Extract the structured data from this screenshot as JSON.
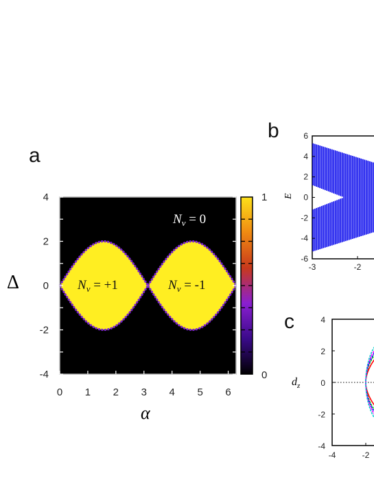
{
  "panels": {
    "a": "a",
    "b": "b",
    "c": "c"
  },
  "chart_data": [
    {
      "panel": "a",
      "type": "heatmap",
      "xlabel": "α",
      "ylabel": "Δ",
      "xlim": [
        0,
        6.28
      ],
      "ylim": [
        -4,
        4
      ],
      "x_ticks": [
        "0",
        "1",
        "2",
        "3",
        "4",
        "5",
        "6"
      ],
      "y_ticks": [
        "4",
        "2",
        "0",
        "-2",
        "-4"
      ],
      "colorbar": {
        "min_label": "0",
        "max_label": "1",
        "colors": [
          "#000000",
          "#3a0a8a",
          "#8a1fd0",
          "#c8391c",
          "#f08a12",
          "#fde01a"
        ]
      },
      "background_color": "#000000",
      "fill_color": "#ffee22",
      "edge_color": "#7b1fd8",
      "regions": [
        {
          "label_main": "N",
          "label_sub": "v",
          "label_rest": " = +1",
          "alpha_center": 1.57,
          "half_height": 2.0
        },
        {
          "label_main": "N",
          "label_sub": "v",
          "label_rest": " = -1",
          "alpha_center": 4.71,
          "half_height": 2.0
        }
      ],
      "outside_label": {
        "label_main": "N",
        "label_sub": "v",
        "label_rest": " = 0"
      }
    },
    {
      "panel": "b",
      "type": "bar",
      "ylabel": "E",
      "xlim": [
        -3,
        -0.6
      ],
      "ylim": [
        -6,
        6
      ],
      "x_ticks": [
        "-3",
        "-2",
        "-"
      ],
      "y_ticks": [
        "6",
        "4",
        "2",
        "0",
        "-2",
        "-4",
        "-6"
      ],
      "band_color": "#1a1aee",
      "band_outer_at_x_minus3": 5.3,
      "band_inner_at_x_minus3": 1.2,
      "band_inner_min_at": -2.3
    },
    {
      "panel": "c",
      "type": "line",
      "ylabel": "d",
      "ylabel_sub": "z",
      "xlim": [
        -4,
        -1.1
      ],
      "ylim": [
        -4,
        4
      ],
      "x_ticks": [
        "-4",
        "-2"
      ],
      "y_ticks": [
        "4",
        "2",
        "0",
        "-2",
        "-4"
      ],
      "series_colors": [
        "#ff0000",
        "#00cc00",
        "#0000ff",
        "#ff00ff",
        "#00cccc"
      ]
    }
  ]
}
